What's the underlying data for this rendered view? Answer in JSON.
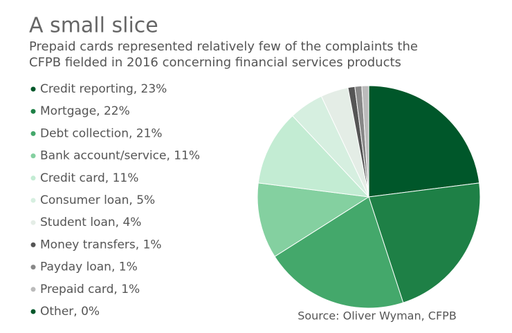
{
  "chart_data": {
    "type": "pie",
    "title": "A small slice",
    "subtitle": [
      "Prepaid cards represented relatively few of the complaints the",
      "CFPB fielded in 2016 concerning financial services products"
    ],
    "categories": [
      "Credit reporting, 23%",
      "Mortgage, 22%",
      "Debt collection, 21%",
      "Bank account/service, 11%",
      "Credit card, 11%",
      "Consumer loan, 5%",
      "Student loan, 4%",
      "Money transfers, 1%",
      "Payday loan, 1%",
      "Prepaid card, 1%",
      "Other, 0%"
    ],
    "values": [
      23,
      22,
      21,
      11,
      11,
      5,
      4,
      1,
      1,
      1,
      0
    ],
    "colors": [
      "#00572a",
      "#1e8046",
      "#44a86b",
      "#84d0a0",
      "#c3ecd3",
      "#d6efe0",
      "#e4ede6",
      "#555555",
      "#888888",
      "#bbbbbb",
      "#00572a"
    ],
    "source": "Source: Oliver Wyman, CFPB"
  }
}
